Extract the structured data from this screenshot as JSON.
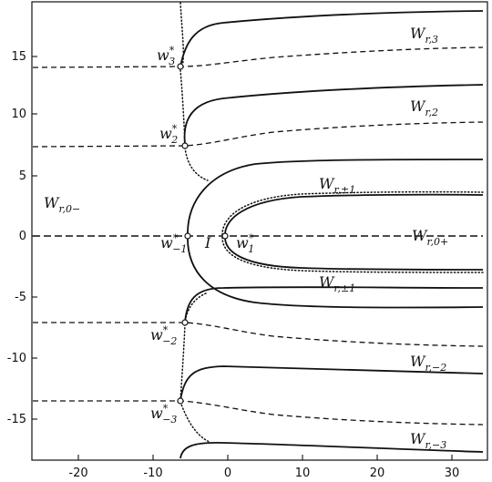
{
  "x_ticks": [
    "-20",
    "-10",
    "0",
    "10",
    "20",
    "30"
  ],
  "y_ticks": [
    "15",
    "10",
    "5",
    "0",
    "-5",
    "-10",
    "-15"
  ],
  "region_labels": {
    "w_r3": {
      "main": "W",
      "sub": "r,3"
    },
    "w_r2": {
      "main": "W",
      "sub": "r,2"
    },
    "w_rpm_top": {
      "main": "W",
      "sub": "r,±1"
    },
    "w_r0minus": {
      "main": "W",
      "sub": "r,0−"
    },
    "w_r0plus": {
      "main": "W",
      "sub": "r,0+"
    },
    "w_rpm_bot": {
      "main": "W",
      "sub": "r,±1"
    },
    "w_rm2": {
      "main": "W",
      "sub": "r,−2"
    },
    "w_rm3": {
      "main": "W",
      "sub": "r,−3"
    }
  },
  "point_labels": {
    "w3": {
      "main": "w",
      "sup": "*",
      "sub": "3"
    },
    "w2": {
      "main": "w",
      "sup": "*",
      "sub": "2"
    },
    "wm1": {
      "main": "w",
      "sup": "*",
      "sub": "−1"
    },
    "w1": {
      "main": "w",
      "sup": "*",
      "sub": "1"
    },
    "wm2": {
      "main": "w",
      "sup": "*",
      "sub": "−2"
    },
    "wm3": {
      "main": "w",
      "sup": "*",
      "sub": "−3"
    }
  },
  "region_I": "I"
}
